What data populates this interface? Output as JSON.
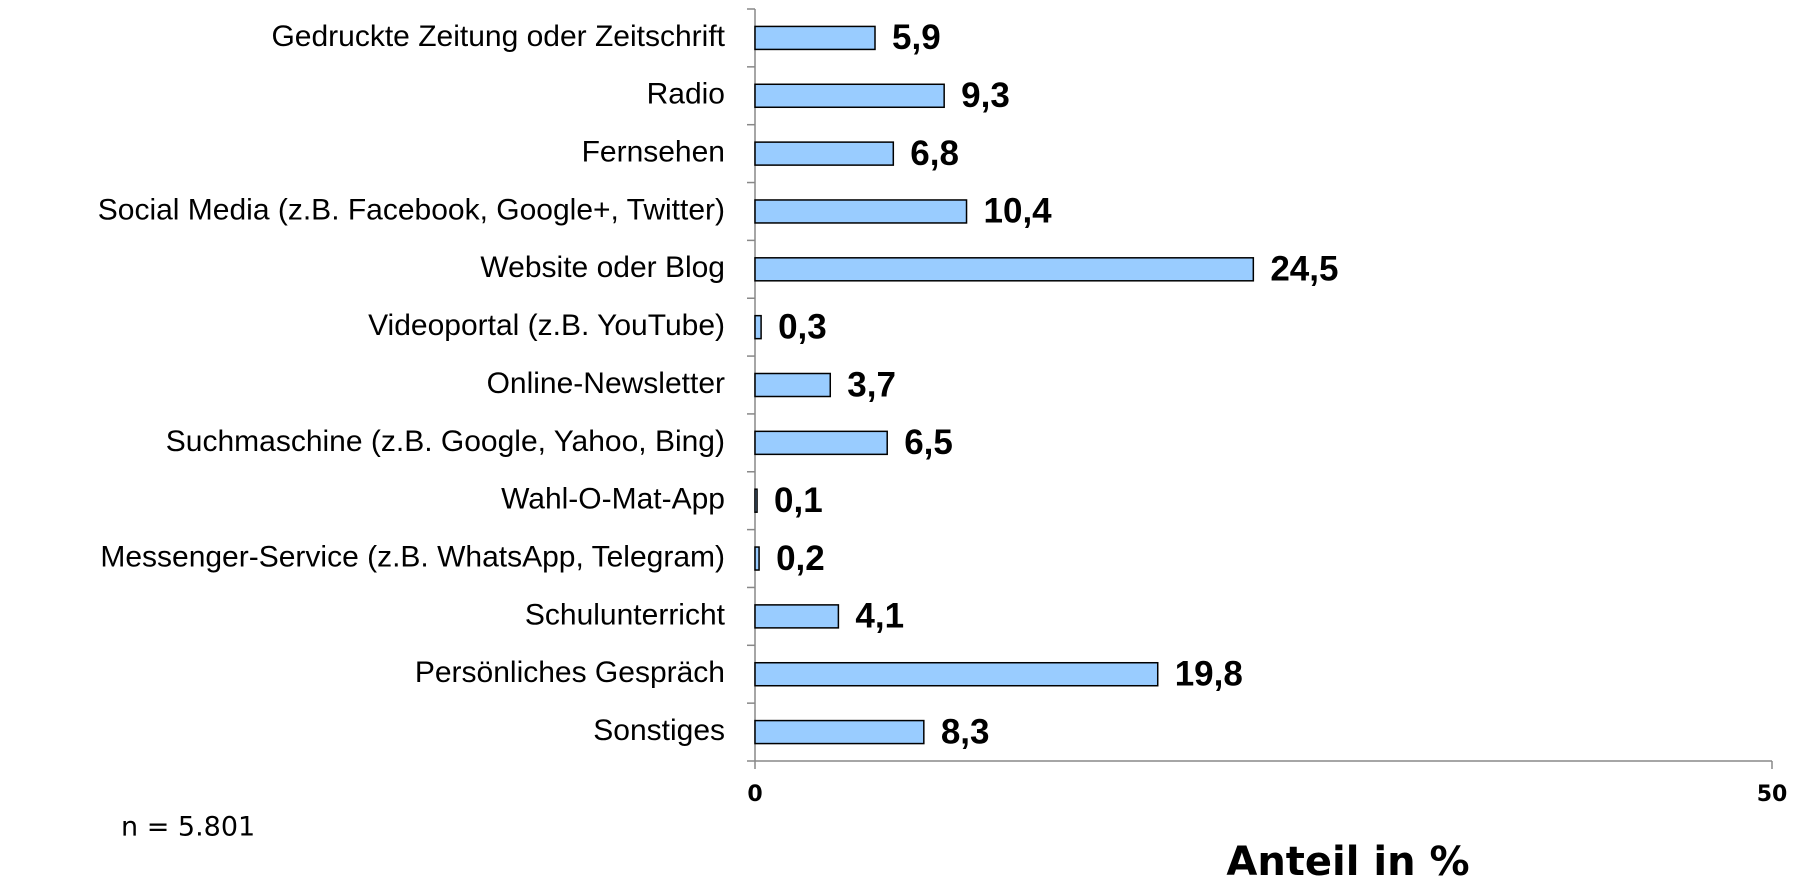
{
  "chart_data": {
    "type": "barh",
    "categories": [
      "Gedruckte Zeitung oder Zeitschrift",
      "Radio",
      "Fernsehen",
      "Social Media (z.B. Facebook, Google+, Twitter)",
      "Website oder Blog",
      "Videoportal (z.B. YouTube)",
      "Online-Newsletter",
      "Suchmaschine (z.B. Google, Yahoo, Bing)",
      "Wahl-O-Mat-App",
      "Messenger-Service (z.B. WhatsApp, Telegram)",
      "Schulunterricht",
      "Persönliches Gespräch",
      "Sonstiges"
    ],
    "values": [
      5.9,
      9.3,
      6.8,
      10.4,
      24.5,
      0.3,
      3.7,
      6.5,
      0.1,
      0.2,
      4.1,
      19.8,
      8.3
    ],
    "value_labels": [
      "5,9",
      "9,3",
      "6,8",
      "10,4",
      "24,5",
      "0,3",
      "3,7",
      "6,5",
      "0,1",
      "0,2",
      "4,1",
      "19,8",
      "8,3"
    ],
    "color": "#99ccff",
    "xlim": [
      0,
      50
    ],
    "xticks": [
      0,
      50
    ],
    "xlabel": "Anteil in %",
    "note": "n = 5.801"
  }
}
